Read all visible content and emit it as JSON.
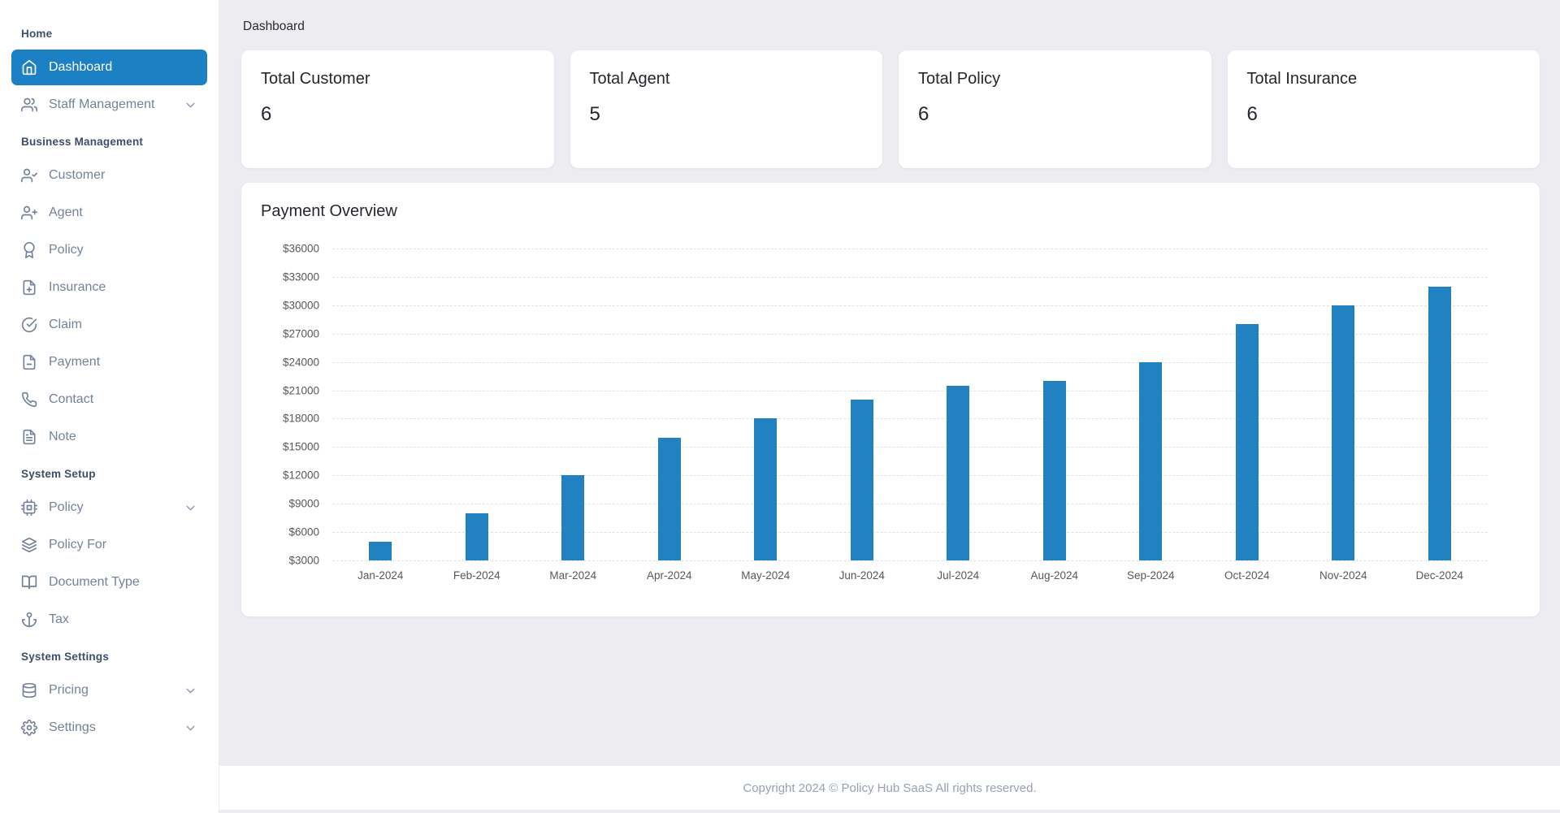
{
  "colors": {
    "primary": "#1b80c4",
    "bar": "#2181c1",
    "main_background": "#edecf1",
    "sidebar_background": "#ffffff"
  },
  "breadcrumb": {
    "title": "Dashboard"
  },
  "sidebar": {
    "sections": [
      {
        "label": "Home",
        "items": [
          {
            "label": "Dashboard",
            "icon": "home-icon",
            "active": true,
            "chevron": false
          },
          {
            "label": "Staff Management",
            "icon": "users-icon",
            "active": false,
            "chevron": true
          }
        ]
      },
      {
        "label": "Business Management",
        "items": [
          {
            "label": "Customer",
            "icon": "user-check-icon",
            "active": false,
            "chevron": false
          },
          {
            "label": "Agent",
            "icon": "user-plus-icon",
            "active": false,
            "chevron": false
          },
          {
            "label": "Policy",
            "icon": "award-icon",
            "active": false,
            "chevron": false
          },
          {
            "label": "Insurance",
            "icon": "file-plus-icon",
            "active": false,
            "chevron": false
          },
          {
            "label": "Claim",
            "icon": "check-circle-icon",
            "active": false,
            "chevron": false
          },
          {
            "label": "Payment",
            "icon": "file-minus-icon",
            "active": false,
            "chevron": false
          },
          {
            "label": "Contact",
            "icon": "phone-icon",
            "active": false,
            "chevron": false
          },
          {
            "label": "Note",
            "icon": "file-text-icon",
            "active": false,
            "chevron": false
          }
        ]
      },
      {
        "label": "System Setup",
        "items": [
          {
            "label": "Policy",
            "icon": "cpu-icon",
            "active": false,
            "chevron": true
          },
          {
            "label": "Policy For",
            "icon": "layers-icon",
            "active": false,
            "chevron": false
          },
          {
            "label": "Document Type",
            "icon": "book-open-icon",
            "active": false,
            "chevron": false
          },
          {
            "label": "Tax",
            "icon": "anchor-icon",
            "active": false,
            "chevron": false
          }
        ]
      },
      {
        "label": "System Settings",
        "items": [
          {
            "label": "Pricing",
            "icon": "database-icon",
            "active": false,
            "chevron": true
          },
          {
            "label": "Settings",
            "icon": "settings-icon",
            "active": false,
            "chevron": true
          }
        ]
      }
    ]
  },
  "cards": [
    {
      "title": "Total Customer",
      "value": "6"
    },
    {
      "title": "Total Agent",
      "value": "5"
    },
    {
      "title": "Total Policy",
      "value": "6"
    },
    {
      "title": "Total Insurance",
      "value": "6"
    }
  ],
  "chart_data": {
    "type": "bar",
    "title": "Payment Overview",
    "categories": [
      "Jan-2024",
      "Feb-2024",
      "Mar-2024",
      "Apr-2024",
      "May-2024",
      "Jun-2024",
      "Jul-2024",
      "Aug-2024",
      "Sep-2024",
      "Oct-2024",
      "Nov-2024",
      "Dec-2024"
    ],
    "values": [
      5000,
      8000,
      12000,
      16000,
      18000,
      20000,
      21500,
      22000,
      24000,
      28000,
      30000,
      32000
    ],
    "currency_prefix": "$",
    "ylim": [
      3000,
      36000
    ],
    "ytick_step": 3000,
    "y_tick_labels": [
      "$36000",
      "$33000",
      "$30000",
      "$27000",
      "$24000",
      "$21000",
      "$18000",
      "$15000",
      "$12000",
      "$9000",
      "$6000",
      "$3000"
    ],
    "xlabel": "",
    "ylabel": "",
    "grid": "horizontal-dashed",
    "legend": "none",
    "bar_color": "#2181c1"
  },
  "footer": {
    "text": "Copyright 2024 © Policy Hub SaaS All rights reserved."
  }
}
